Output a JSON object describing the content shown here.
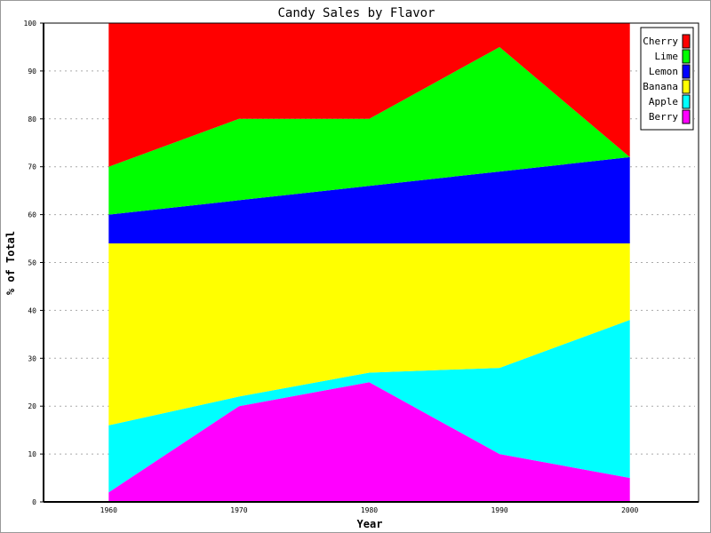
{
  "chart_data": {
    "type": "area",
    "stacked": true,
    "title": "Candy Sales by Flavor",
    "xlabel": "Year",
    "ylabel": "% of Total",
    "x": [
      1960,
      1970,
      1980,
      1990,
      2000
    ],
    "xticks": [
      "1960",
      "1970",
      "1980",
      "1990",
      "2000"
    ],
    "xlim": [
      1955,
      2005
    ],
    "ylim": [
      0,
      100
    ],
    "yticks": [
      "0",
      "10",
      "20",
      "30",
      "40",
      "50",
      "60",
      "70",
      "80",
      "90",
      "100"
    ],
    "grid": "horizontal dotted",
    "legend_position": "top-right",
    "series": [
      {
        "name": "Berry",
        "color": "#ff00ff",
        "values": [
          2,
          20,
          25,
          10,
          5
        ]
      },
      {
        "name": "Apple",
        "color": "#00ffff",
        "values": [
          14,
          2,
          2,
          18,
          33
        ]
      },
      {
        "name": "Banana",
        "color": "#ffff00",
        "values": [
          38,
          32,
          27,
          26,
          16
        ]
      },
      {
        "name": "Lemon",
        "color": "#0000ff",
        "values": [
          6,
          9,
          12,
          15,
          18
        ]
      },
      {
        "name": "Lime",
        "color": "#00ff00",
        "values": [
          10,
          17,
          14,
          26,
          0
        ]
      },
      {
        "name": "Cherry",
        "color": "#ff0000",
        "values": [
          30,
          20,
          20,
          5,
          28
        ]
      }
    ]
  }
}
